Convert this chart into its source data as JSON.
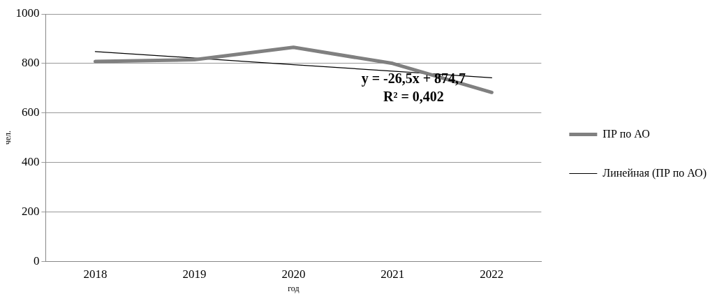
{
  "chart_data": {
    "type": "line",
    "xlabel": "год",
    "ylabel": "чел.",
    "categories": [
      "2018",
      "2019",
      "2020",
      "2021",
      "2022"
    ],
    "series": [
      {
        "name": "ПР по АО",
        "color": "#808080",
        "values": [
          808,
          815,
          865,
          800,
          683
        ]
      },
      {
        "name": "Линейная (ПР по АО)",
        "color": "#000000",
        "values": [
          848,
          822,
          795,
          769,
          742
        ]
      }
    ],
    "ylim": [
      0,
      1000
    ],
    "yticks": [
      0,
      200,
      400,
      600,
      800,
      1000
    ],
    "grid": "y",
    "legend": "right",
    "marker": "none",
    "line_style": "solid",
    "annotations": [
      "y = -26,5x + 874,7",
      "R² = 0,402"
    ]
  }
}
